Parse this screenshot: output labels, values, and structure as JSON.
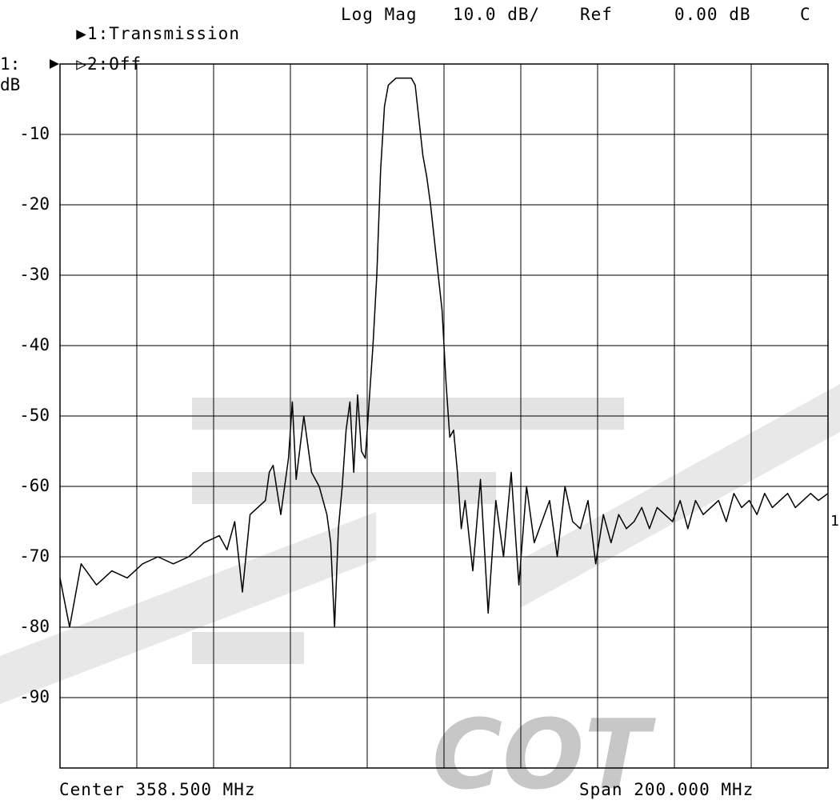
{
  "header": {
    "trace1": "1:Transmission",
    "trace2": "2:Off",
    "format": "Log Mag",
    "scale": "10.0 dB/",
    "ref_label": "Ref",
    "ref_value": "0.00 dB",
    "cal_flag": "C"
  },
  "axis": {
    "channel_label": "1:",
    "unit_label": "dB",
    "ref_position_marker": "1"
  },
  "footer": {
    "center": "Center 358.500 MHz",
    "span": "Span 200.000 MHz"
  },
  "watermark": {
    "text": "COT"
  },
  "colors": {
    "trace": "#000000",
    "grid": "#000000",
    "watermark": "#cfcfcf"
  },
  "chart_data": {
    "type": "line",
    "title": "",
    "xlabel": "",
    "ylabel": "dB",
    "xlim": [
      258.5,
      458.5
    ],
    "ylim": [
      -100,
      0
    ],
    "x_divisions": 10,
    "y_divisions": 10,
    "grid": true,
    "ytick_labels": [
      "-10",
      "-20",
      "-30",
      "-40",
      "-50",
      "-60",
      "-70",
      "-80",
      "-90"
    ],
    "ytick_values": [
      -10,
      -20,
      -30,
      -40,
      -50,
      -60,
      -70,
      -80,
      -90
    ],
    "series": [
      {
        "x": [
          258.5,
          261,
          264,
          268,
          272,
          276,
          280,
          284,
          288,
          292,
          296,
          300,
          302,
          304,
          306,
          308,
          310,
          312,
          313,
          314,
          316,
          318,
          319,
          320,
          322,
          324,
          326,
          327,
          328,
          329,
          330,
          331,
          332,
          333,
          334,
          335,
          336,
          337,
          338,
          339,
          340,
          341,
          342,
          343,
          344,
          346,
          347,
          348,
          349,
          350,
          351,
          352,
          353,
          354,
          355,
          356,
          357,
          358,
          359,
          360,
          361,
          362,
          363,
          364,
          366,
          368,
          370,
          372,
          374,
          376,
          378,
          380,
          382,
          384,
          386,
          388,
          390,
          392,
          394,
          396,
          398,
          400,
          402,
          404,
          406,
          408,
          410,
          412,
          414,
          416,
          418,
          420,
          422,
          424,
          426,
          428,
          430,
          432,
          434,
          436,
          438,
          440,
          442,
          444,
          446,
          448,
          450,
          452,
          454,
          456,
          458.5
        ],
        "y": [
          -73,
          -80,
          -71,
          -74,
          -72,
          -73,
          -71,
          -70,
          -71,
          -70,
          -68,
          -67,
          -69,
          -65,
          -75,
          -64,
          -63,
          -62,
          -58,
          -57,
          -64,
          -56,
          -48,
          -59,
          -50,
          -58,
          -60,
          -62,
          -64,
          -68,
          -80,
          -66,
          -60,
          -52,
          -48,
          -58,
          -47,
          -55,
          -56,
          -48,
          -40,
          -30,
          -15,
          -6,
          -3,
          -2,
          -2,
          -2,
          -2,
          -2,
          -3,
          -8,
          -13,
          -16,
          -20,
          -25,
          -30,
          -35,
          -45,
          -53,
          -52,
          -58,
          -66,
          -62,
          -72,
          -59,
          -78,
          -62,
          -70,
          -58,
          -74,
          -60,
          -68,
          -65,
          -62,
          -70,
          -60,
          -65,
          -66,
          -62,
          -71,
          -64,
          -68,
          -64,
          -66,
          -65,
          -63,
          -66,
          -63,
          -64,
          -65,
          -62,
          -66,
          -62,
          -64,
          -63,
          -62,
          -65,
          -61,
          -63,
          -62,
          -64,
          -61,
          -63,
          -62,
          -61,
          -63,
          -62,
          -61,
          -62,
          -61
        ]
      }
    ]
  }
}
